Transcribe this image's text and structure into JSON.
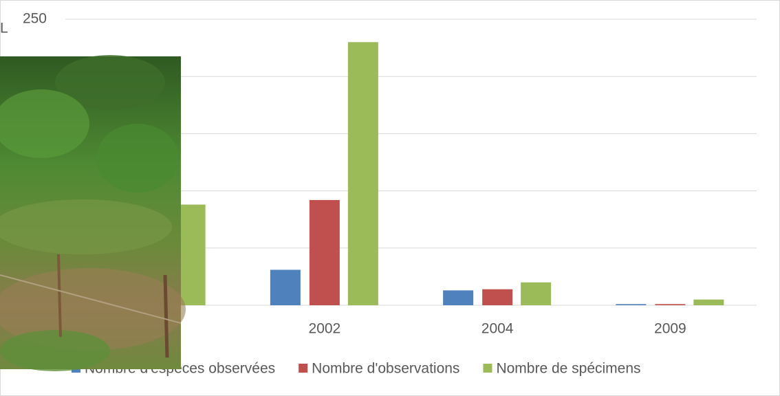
{
  "chart_data": {
    "type": "bar",
    "title": "L",
    "categories": [
      null,
      "2002",
      "2004",
      "2009"
    ],
    "series": [
      {
        "name": "Nombre d'espèces observées",
        "color": "#4f81bd",
        "values": [
          null,
          31,
          13,
          1
        ]
      },
      {
        "name": "Nombre d'observations",
        "color": "#c0504d",
        "values": [
          null,
          92,
          14,
          1
        ]
      },
      {
        "name": "Nombre de spécimens",
        "color": "#9bbb59",
        "values": [
          88,
          230,
          20,
          5
        ]
      }
    ],
    "ylim": [
      0,
      250
    ],
    "yticks": [
      0,
      50,
      100,
      150,
      200,
      250
    ],
    "grid": true,
    "legend": "bottom"
  }
}
